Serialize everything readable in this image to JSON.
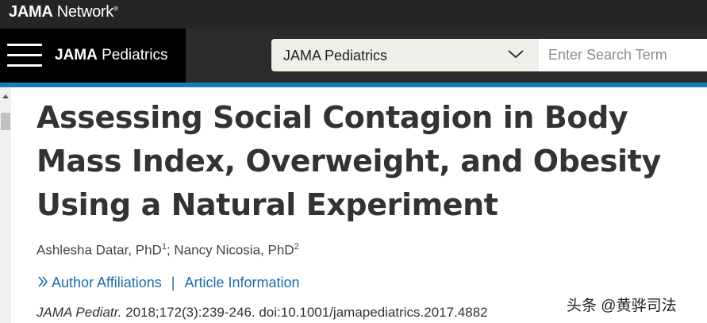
{
  "network": {
    "brand": "JAMA",
    "sub": " Network",
    "tm": "®"
  },
  "journal": {
    "brand": "JAMA",
    "name": " Pediatrics"
  },
  "journal_select": {
    "selected": "JAMA Pediatrics"
  },
  "search": {
    "placeholder": "Enter Search Term"
  },
  "article": {
    "title": "Assessing Social Contagion in Body Mass Index, Overweight, and Obesity Using a Natural Experiment",
    "authors": [
      {
        "name": "Ashlesha Datar, PhD",
        "affil": "1"
      },
      {
        "name": "Nancy Nicosia, PhD",
        "affil": "2"
      }
    ],
    "author_separator": "; ",
    "links": {
      "affiliations": "Author Affiliations",
      "separator": "|",
      "info": "Article Information"
    },
    "citation": {
      "journal": "JAMA Pediatr.",
      "details": " 2018;172(3):239-246. doi:10.1001/jamapediatrics.2017.4882"
    }
  },
  "watermark": "头条 @黄骅司法",
  "colors": {
    "accent": "#1a7bb4",
    "link": "#1a6fa8",
    "header_bg": "#2b2b2b"
  }
}
